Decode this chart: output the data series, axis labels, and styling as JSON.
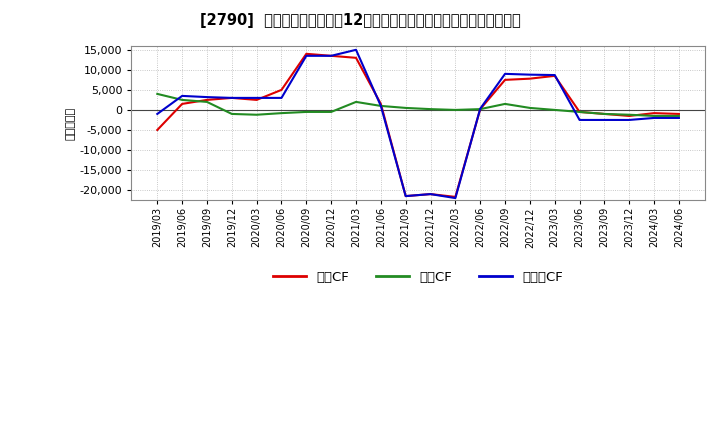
{
  "title": "[2790]  キャッシュフローの12か月移動合計の対前年同期増減額の推移",
  "ylabel": "（百万円）",
  "background_color": "#ffffff",
  "plot_bg_color": "#ffffff",
  "grid_color": "#999999",
  "x_labels": [
    "2019/03",
    "2019/06",
    "2019/09",
    "2019/12",
    "2020/03",
    "2020/06",
    "2020/09",
    "2020/12",
    "2021/03",
    "2021/06",
    "2021/09",
    "2021/12",
    "2022/03",
    "2022/06",
    "2022/09",
    "2022/12",
    "2023/03",
    "2023/06",
    "2023/09",
    "2023/12",
    "2024/03",
    "2024/06"
  ],
  "operating_cf": [
    -5000,
    1500,
    2500,
    3000,
    2500,
    5000,
    14000,
    13500,
    13000,
    1500,
    -21500,
    -21000,
    -21700,
    200,
    7500,
    7800,
    8500,
    -500,
    -1000,
    -1500,
    -800,
    -1000
  ],
  "investing_cf": [
    4000,
    2500,
    2000,
    -1000,
    -1200,
    -800,
    -500,
    -500,
    2000,
    1000,
    500,
    200,
    0,
    200,
    1500,
    500,
    0,
    -500,
    -1000,
    -1200,
    -1500,
    -1500
  ],
  "free_cf": [
    -1000,
    3500,
    3200,
    3000,
    3000,
    3000,
    13500,
    13500,
    15000,
    1000,
    -21500,
    -21000,
    -22000,
    300,
    9000,
    8800,
    8700,
    -2500,
    -2500,
    -2500,
    -2000,
    -2000
  ],
  "operating_color": "#dd0000",
  "investing_color": "#228B22",
  "free_color": "#0000cc",
  "ylim_min": -22500,
  "ylim_max": 16000,
  "yticks": [
    -20000,
    -15000,
    -10000,
    -5000,
    0,
    5000,
    10000,
    15000
  ],
  "legend_labels": [
    "営業CF",
    "投資CF",
    "フリーCF"
  ]
}
